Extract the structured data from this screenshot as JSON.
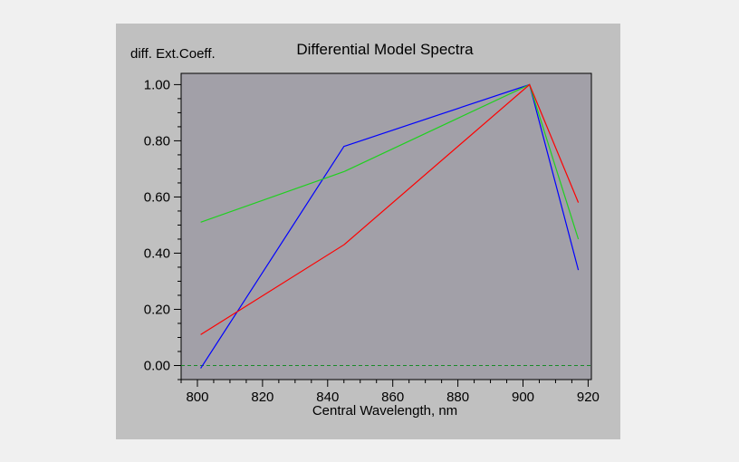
{
  "chart_data": {
    "type": "line",
    "title": "Differential Model Spectra",
    "ylabel": "diff. Ext.Coeff.",
    "xlabel": "Central Wavelength, nm",
    "xlim": [
      795,
      921
    ],
    "ylim": [
      -0.05,
      1.04
    ],
    "x_ticks": [
      800,
      820,
      840,
      860,
      880,
      900,
      920
    ],
    "y_ticks": [
      0.0,
      0.2,
      0.4,
      0.6,
      0.8,
      1.0
    ],
    "y_tick_labels": [
      "0.00",
      "0.20",
      "0.40",
      "0.60",
      "0.80",
      "1.00"
    ],
    "x_minor_step": 5,
    "y_minor_step": 0.05,
    "grid": false,
    "reference_line": {
      "y": 0.0,
      "style": "dashed",
      "color": "#1a8a2a"
    },
    "plot_background": "#a2a0a8",
    "panel_background": "#c0c0c0",
    "series": [
      {
        "color": "#0000ff",
        "x": [
          801,
          845,
          902,
          917
        ],
        "values": [
          -0.01,
          0.78,
          1.0,
          0.34
        ]
      },
      {
        "color": "#20d020",
        "x": [
          801,
          845,
          902,
          917
        ],
        "values": [
          0.51,
          0.69,
          1.0,
          0.45
        ]
      },
      {
        "color": "#ff0000",
        "x": [
          801,
          845,
          902,
          917
        ],
        "values": [
          0.11,
          0.43,
          1.0,
          0.58
        ]
      }
    ]
  }
}
